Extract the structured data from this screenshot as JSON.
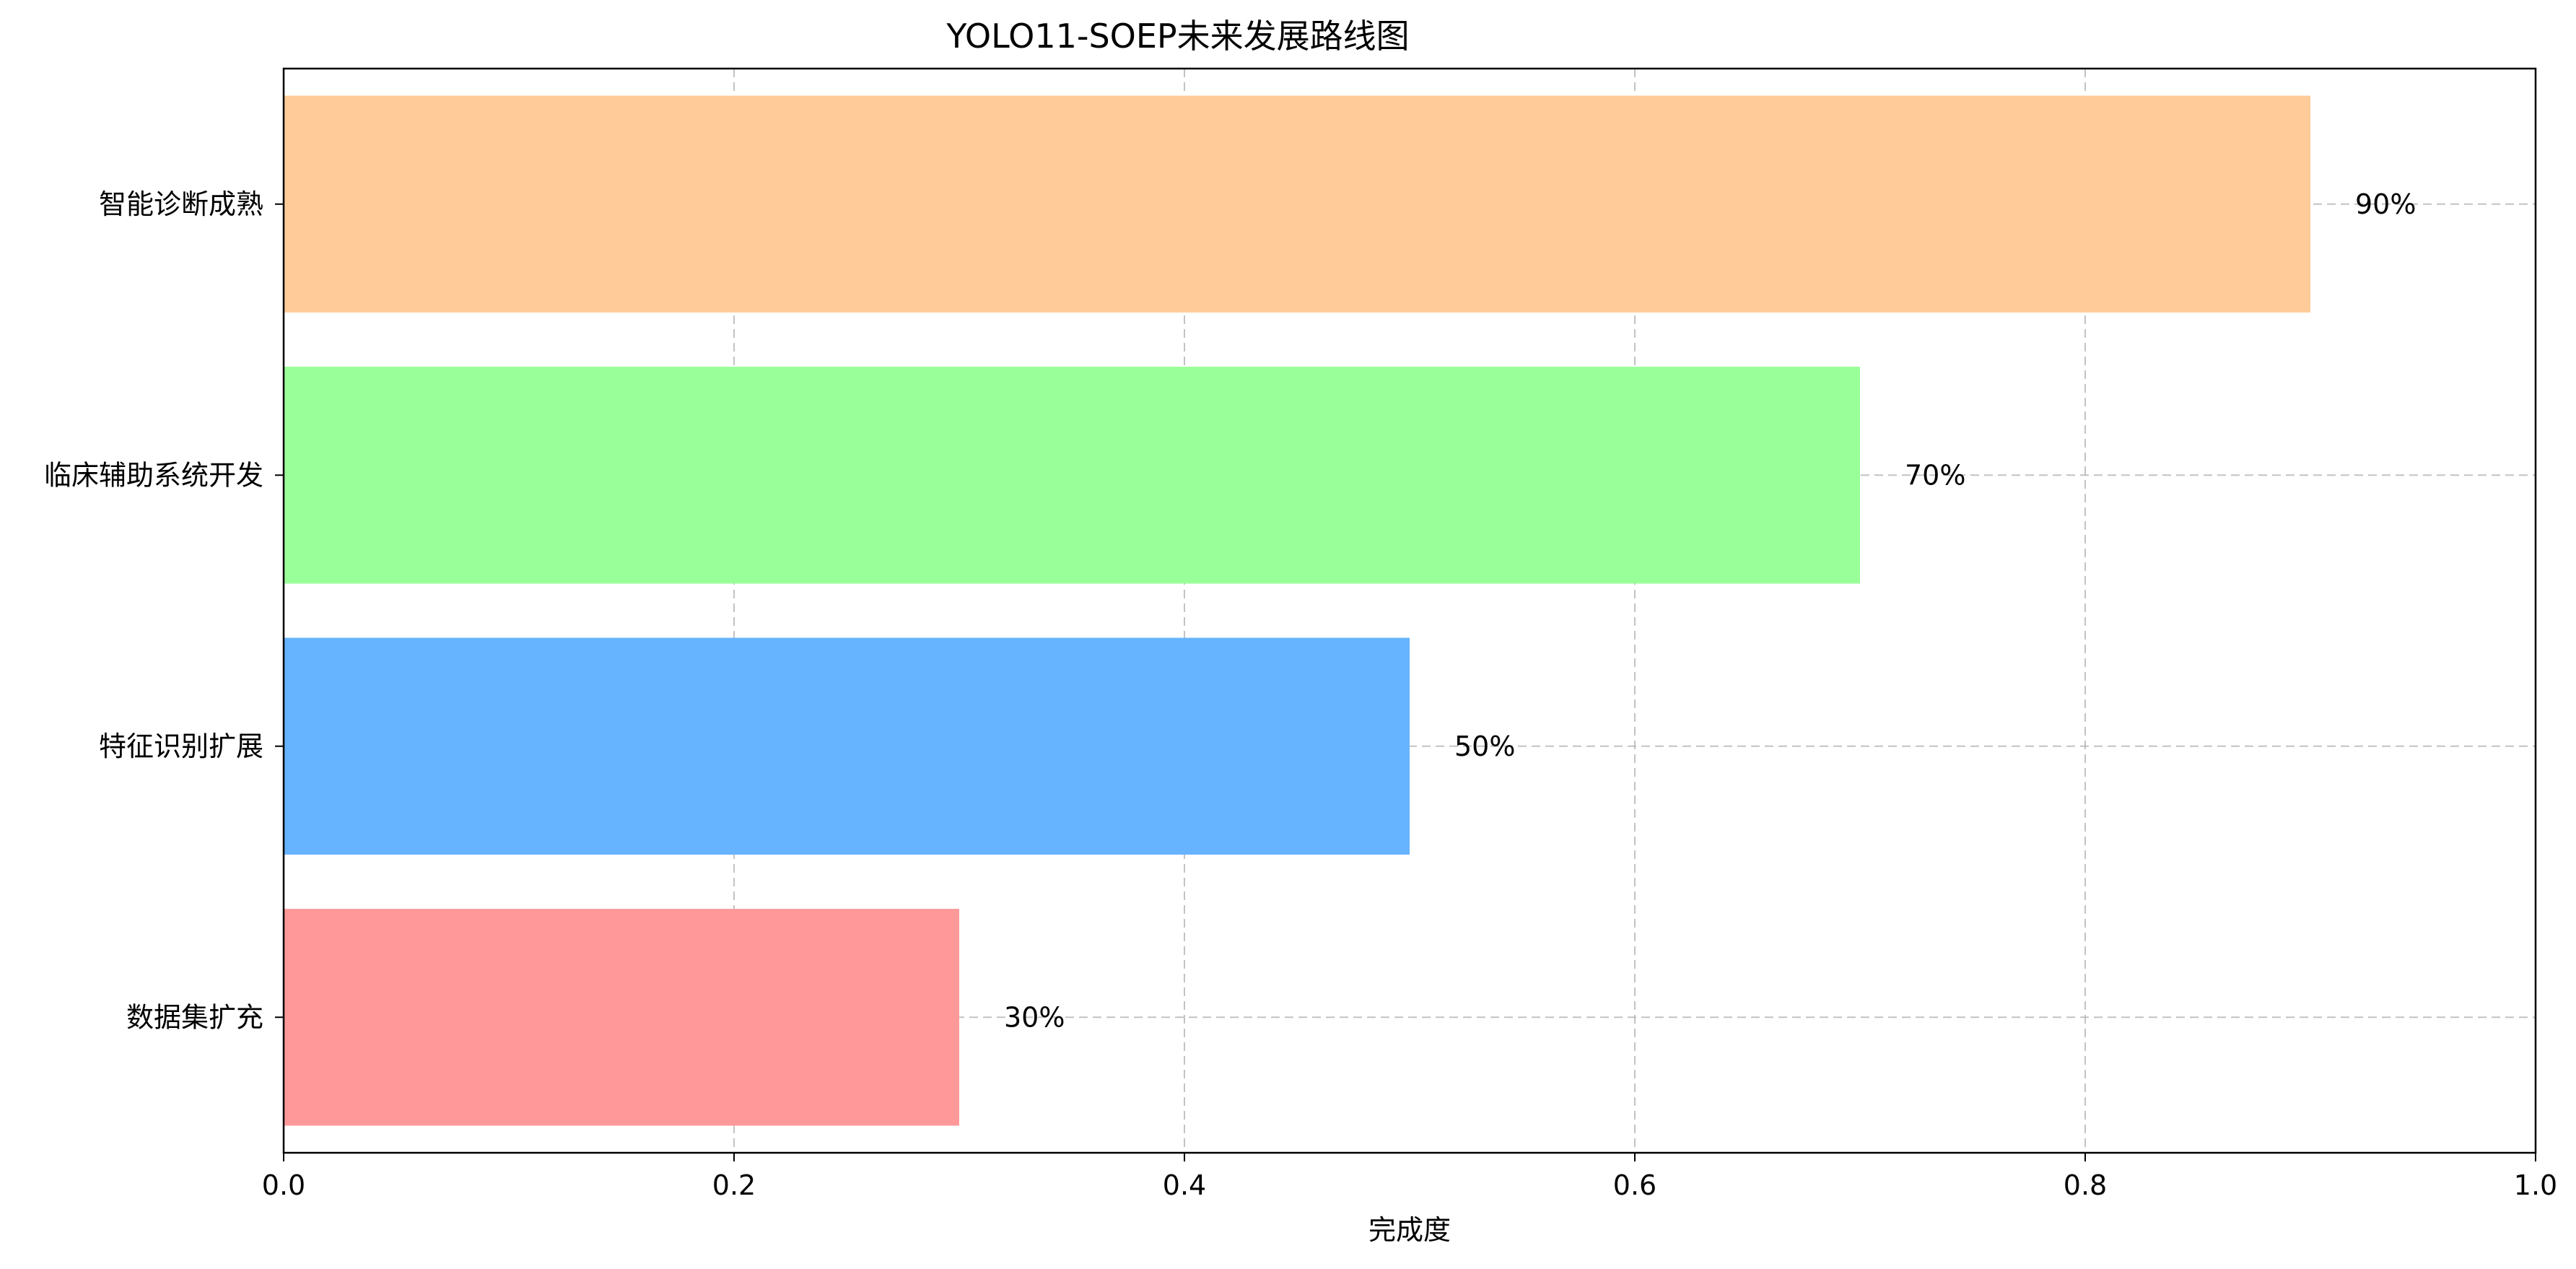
{
  "chart_data": {
    "type": "bar",
    "orientation": "horizontal",
    "title": "YOLO11-SOEP未来发展路线图",
    "xlabel": "完成度",
    "ylabel": "",
    "xlim": [
      0.0,
      1.0
    ],
    "x_ticks": [
      "0.0",
      "0.2",
      "0.4",
      "0.6",
      "0.8",
      "1.0"
    ],
    "grid": true,
    "categories": [
      "数据集扩充",
      "特征识别扩展",
      "临床辅助系统开发",
      "智能诊断成熟"
    ],
    "values": [
      0.3,
      0.5,
      0.7,
      0.9
    ],
    "data_labels": [
      "30%",
      "50%",
      "70%",
      "90%"
    ],
    "colors": [
      "#ff9999",
      "#66b3ff",
      "#99ff99",
      "#ffcc99"
    ]
  }
}
